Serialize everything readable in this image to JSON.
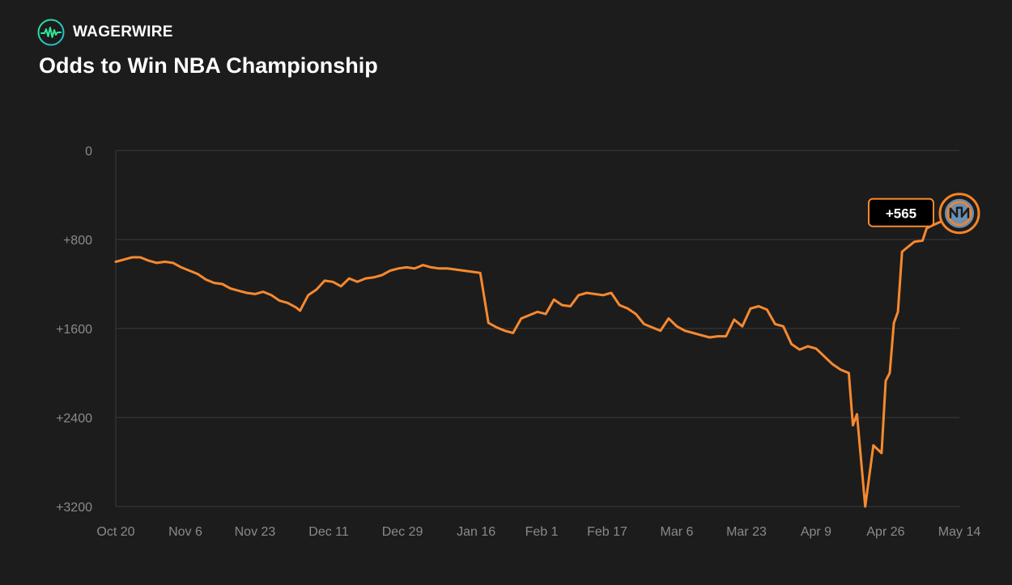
{
  "brand": {
    "name": "WAGERWIRE",
    "logo_icon": "waveform-circle-icon"
  },
  "colors": {
    "background": "#1c1c1c",
    "line": "#f7892f",
    "grid": "#3a3a3a",
    "tick_text": "#8a8a8a",
    "team_badge_fill": "#6c8fb4",
    "team_badge_accent": "#f58426"
  },
  "chart_data": {
    "type": "line",
    "title": "Odds to Win NBA Championship",
    "y_axis": {
      "reversed": true,
      "range": [
        0,
        3200
      ],
      "ticks": [
        {
          "value": 0,
          "label": "0"
        },
        {
          "value": 800,
          "label": "+800"
        },
        {
          "value": 1600,
          "label": "+1600"
        },
        {
          "value": 2400,
          "label": "+2400"
        },
        {
          "value": 3200,
          "label": "+3200"
        }
      ],
      "grid": true
    },
    "x_axis": {
      "range": [
        "2024-10-20",
        "2025-05-14"
      ],
      "ticks": [
        {
          "date": "2024-10-20",
          "label": "Oct 20"
        },
        {
          "date": "2024-11-06",
          "label": "Nov 6"
        },
        {
          "date": "2024-11-23",
          "label": "Nov 23"
        },
        {
          "date": "2024-12-11",
          "label": "Dec 11"
        },
        {
          "date": "2024-12-29",
          "label": "Dec 29"
        },
        {
          "date": "2025-01-16",
          "label": "Jan 16"
        },
        {
          "date": "2025-02-01",
          "label": "Feb 1"
        },
        {
          "date": "2025-02-17",
          "label": "Feb 17"
        },
        {
          "date": "2025-03-06",
          "label": "Mar 6"
        },
        {
          "date": "2025-03-23",
          "label": "Mar 23"
        },
        {
          "date": "2025-04-09",
          "label": "Apr 9"
        },
        {
          "date": "2025-04-26",
          "label": "Apr 26"
        },
        {
          "date": "2025-05-14",
          "label": "May 14"
        }
      ]
    },
    "series": [
      {
        "color": "#f7892f",
        "points": [
          [
            "2024-10-20",
            1000
          ],
          [
            "2024-10-22",
            980
          ],
          [
            "2024-10-24",
            960
          ],
          [
            "2024-10-26",
            960
          ],
          [
            "2024-10-28",
            990
          ],
          [
            "2024-10-30",
            1010
          ],
          [
            "2024-11-01",
            1000
          ],
          [
            "2024-11-03",
            1010
          ],
          [
            "2024-11-05",
            1050
          ],
          [
            "2024-11-07",
            1080
          ],
          [
            "2024-11-09",
            1110
          ],
          [
            "2024-11-11",
            1160
          ],
          [
            "2024-11-13",
            1190
          ],
          [
            "2024-11-15",
            1200
          ],
          [
            "2024-11-17",
            1240
          ],
          [
            "2024-11-19",
            1260
          ],
          [
            "2024-11-21",
            1280
          ],
          [
            "2024-11-23",
            1290
          ],
          [
            "2024-11-25",
            1270
          ],
          [
            "2024-11-27",
            1300
          ],
          [
            "2024-11-29",
            1350
          ],
          [
            "2024-12-01",
            1370
          ],
          [
            "2024-12-03",
            1410
          ],
          [
            "2024-12-04",
            1440
          ],
          [
            "2024-12-06",
            1300
          ],
          [
            "2024-12-08",
            1250
          ],
          [
            "2024-12-10",
            1170
          ],
          [
            "2024-12-12",
            1180
          ],
          [
            "2024-12-14",
            1220
          ],
          [
            "2024-12-16",
            1150
          ],
          [
            "2024-12-18",
            1180
          ],
          [
            "2024-12-20",
            1150
          ],
          [
            "2024-12-22",
            1140
          ],
          [
            "2024-12-24",
            1120
          ],
          [
            "2024-12-26",
            1080
          ],
          [
            "2024-12-28",
            1060
          ],
          [
            "2024-12-30",
            1050
          ],
          [
            "2025-01-01",
            1060
          ],
          [
            "2025-01-03",
            1030
          ],
          [
            "2025-01-05",
            1050
          ],
          [
            "2025-01-07",
            1060
          ],
          [
            "2025-01-09",
            1060
          ],
          [
            "2025-01-11",
            1070
          ],
          [
            "2025-01-13",
            1080
          ],
          [
            "2025-01-15",
            1090
          ],
          [
            "2025-01-17",
            1100
          ],
          [
            "2025-01-19",
            1550
          ],
          [
            "2025-01-21",
            1590
          ],
          [
            "2025-01-23",
            1620
          ],
          [
            "2025-01-25",
            1640
          ],
          [
            "2025-01-27",
            1510
          ],
          [
            "2025-01-29",
            1480
          ],
          [
            "2025-01-31",
            1450
          ],
          [
            "2025-02-02",
            1470
          ],
          [
            "2025-02-04",
            1340
          ],
          [
            "2025-02-06",
            1390
          ],
          [
            "2025-02-08",
            1400
          ],
          [
            "2025-02-10",
            1300
          ],
          [
            "2025-02-12",
            1280
          ],
          [
            "2025-02-14",
            1290
          ],
          [
            "2025-02-16",
            1300
          ],
          [
            "2025-02-18",
            1280
          ],
          [
            "2025-02-20",
            1390
          ],
          [
            "2025-02-22",
            1420
          ],
          [
            "2025-02-24",
            1470
          ],
          [
            "2025-02-26",
            1560
          ],
          [
            "2025-02-28",
            1590
          ],
          [
            "2025-03-02",
            1620
          ],
          [
            "2025-03-04",
            1510
          ],
          [
            "2025-03-06",
            1580
          ],
          [
            "2025-03-08",
            1620
          ],
          [
            "2025-03-10",
            1640
          ],
          [
            "2025-03-12",
            1660
          ],
          [
            "2025-03-14",
            1680
          ],
          [
            "2025-03-16",
            1670
          ],
          [
            "2025-03-18",
            1670
          ],
          [
            "2025-03-20",
            1520
          ],
          [
            "2025-03-22",
            1580
          ],
          [
            "2025-03-24",
            1420
          ],
          [
            "2025-03-26",
            1400
          ],
          [
            "2025-03-28",
            1430
          ],
          [
            "2025-03-30",
            1560
          ],
          [
            "2025-04-01",
            1580
          ],
          [
            "2025-04-03",
            1740
          ],
          [
            "2025-04-05",
            1790
          ],
          [
            "2025-04-07",
            1760
          ],
          [
            "2025-04-09",
            1780
          ],
          [
            "2025-04-11",
            1850
          ],
          [
            "2025-04-13",
            1920
          ],
          [
            "2025-04-15",
            1970
          ],
          [
            "2025-04-17",
            2000
          ],
          [
            "2025-04-18",
            2470
          ],
          [
            "2025-04-19",
            2370
          ],
          [
            "2025-04-21",
            3200
          ],
          [
            "2025-04-23",
            2650
          ],
          [
            "2025-04-25",
            2720
          ],
          [
            "2025-04-26",
            2070
          ],
          [
            "2025-04-27",
            2000
          ],
          [
            "2025-04-28",
            1550
          ],
          [
            "2025-04-29",
            1450
          ],
          [
            "2025-04-30",
            910
          ],
          [
            "2025-05-01",
            880
          ],
          [
            "2025-05-03",
            820
          ],
          [
            "2025-05-05",
            810
          ],
          [
            "2025-05-06",
            700
          ],
          [
            "2025-05-07",
            680
          ],
          [
            "2025-05-14",
            565
          ]
        ]
      }
    ],
    "annotations": [
      {
        "date": "2025-05-14",
        "value": 565,
        "label": "+565",
        "marker_icon": "new-york-knicks-logo-icon"
      }
    ]
  }
}
